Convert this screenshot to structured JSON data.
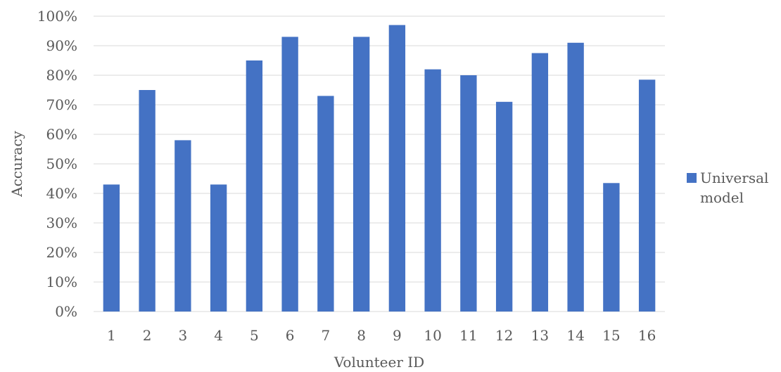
{
  "chart_data": {
    "type": "bar",
    "title": "",
    "xlabel": "Volunteer ID",
    "ylabel": "Accuracy",
    "categories": [
      "1",
      "2",
      "3",
      "4",
      "5",
      "6",
      "7",
      "8",
      "9",
      "10",
      "11",
      "12",
      "13",
      "14",
      "15",
      "16"
    ],
    "series": [
      {
        "name": "Universal model",
        "name_lines": [
          "Universal",
          "model"
        ],
        "color": "#4472C4",
        "values": [
          0.43,
          0.75,
          0.58,
          0.43,
          0.85,
          0.93,
          0.73,
          0.93,
          0.97,
          0.82,
          0.8,
          0.71,
          0.875,
          0.91,
          0.435,
          0.785
        ]
      }
    ],
    "ylim": [
      0,
      1
    ],
    "yticks": [
      0,
      0.1,
      0.2,
      0.3,
      0.4,
      0.5,
      0.6,
      0.7,
      0.8,
      0.9,
      1.0
    ],
    "ytick_labels": [
      "0%",
      "10%",
      "20%",
      "30%",
      "40%",
      "50%",
      "60%",
      "70%",
      "80%",
      "90%",
      "100%"
    ],
    "grid": true,
    "legend": "right",
    "gridline_color": "#D9D9D9",
    "axis_color": "#D9D9D9"
  }
}
